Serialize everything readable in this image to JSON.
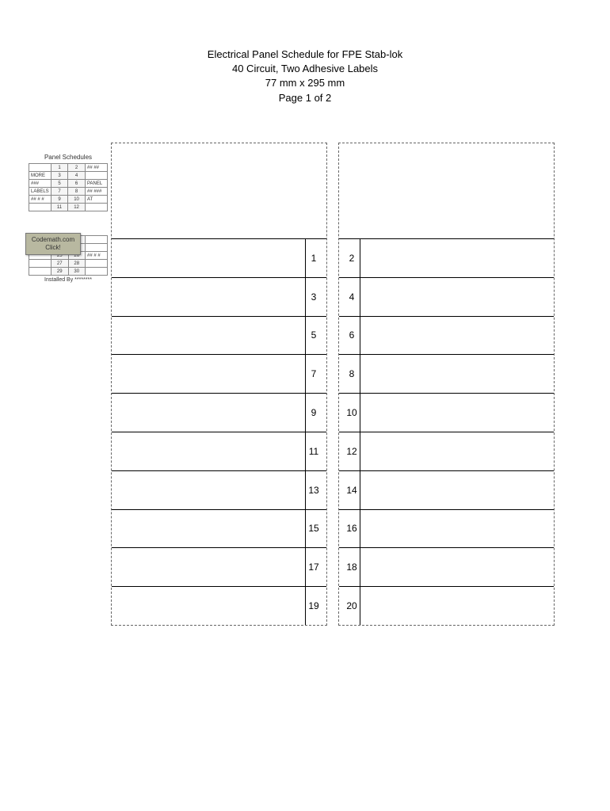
{
  "header": {
    "line1": "Electrical Panel Schedule for FPE Stab-lok",
    "line2": "40 Circuit, Two Adhesive Labels",
    "line3": "77 mm x 295 mm",
    "line4": "Page 1 of 2"
  },
  "left_numbers": [
    "1",
    "3",
    "5",
    "7",
    "9",
    "11",
    "13",
    "15",
    "17",
    "19"
  ],
  "right_numbers": [
    "2",
    "4",
    "6",
    "8",
    "10",
    "12",
    "14",
    "16",
    "18",
    "20"
  ],
  "sidebar": {
    "title": "Panel Schedules",
    "rows_top": [
      {
        "l": "",
        "a": "1",
        "b": "2",
        "r": "## ##"
      },
      {
        "l": "MORE",
        "a": "3",
        "b": "4",
        "r": ""
      },
      {
        "l": "###",
        "a": "5",
        "b": "6",
        "r": "PANEL"
      },
      {
        "l": "LABELS",
        "a": "7",
        "b": "8",
        "r": "## ###"
      },
      {
        "l": "## # #",
        "a": "9",
        "b": "10",
        "r": "AT"
      },
      {
        "l": "",
        "a": "11",
        "b": "12",
        "r": ""
      }
    ],
    "rows_bot": [
      {
        "l": "## # #",
        "a": "21",
        "b": "22",
        "r": ""
      },
      {
        "l": "",
        "a": "23",
        "b": "24",
        "r": ""
      },
      {
        "l": "",
        "a": "25",
        "b": "26",
        "r": "## # #"
      },
      {
        "l": "",
        "a": "27",
        "b": "28",
        "r": ""
      },
      {
        "l": "",
        "a": "29",
        "b": "30",
        "r": ""
      }
    ],
    "badge_line1": "Codemath.com",
    "badge_line2": "Click!",
    "installed": "Installed By ********"
  },
  "colors": {
    "page_bg": "#ffffff",
    "text": "#000000",
    "dash_border": "#666666",
    "solid_line": "#000000",
    "badge_bg": "#b8b8a0",
    "mini_cell_bg": "#f5f5f5"
  }
}
